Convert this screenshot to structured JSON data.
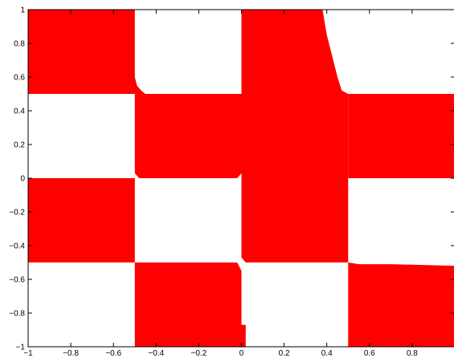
{
  "chart_data": {
    "type": "heatmap",
    "xlim": [
      -1,
      1
    ],
    "ylim": [
      -1,
      1
    ],
    "grid": false,
    "fill_color": "#ff0000",
    "background_color": "#ffffff",
    "x_ticks": [
      {
        "value": -1,
        "label": "−1"
      },
      {
        "value": -0.8,
        "label": "−0.8"
      },
      {
        "value": -0.6,
        "label": "−0.6"
      },
      {
        "value": -0.4,
        "label": "−0.4"
      },
      {
        "value": -0.2,
        "label": "−0.2"
      },
      {
        "value": 0,
        "label": "0"
      },
      {
        "value": 0.2,
        "label": "0.2"
      },
      {
        "value": 0.4,
        "label": "0.4"
      },
      {
        "value": 0.6,
        "label": "0.6"
      },
      {
        "value": 0.8,
        "label": "0.8"
      }
    ],
    "y_ticks": [
      {
        "value": 1,
        "label": "1"
      },
      {
        "value": 0.8,
        "label": "0.8"
      },
      {
        "value": 0.6,
        "label": "0.6"
      },
      {
        "value": 0.4,
        "label": "0.4"
      },
      {
        "value": 0.2,
        "label": "0.2"
      },
      {
        "value": 0,
        "label": "0"
      },
      {
        "value": -0.2,
        "label": "−0.2"
      },
      {
        "value": -0.4,
        "label": "−0.4"
      },
      {
        "value": -0.6,
        "label": "−0.6"
      },
      {
        "value": -0.8,
        "label": "−0.8"
      },
      {
        "value": -1,
        "label": "−1"
      }
    ],
    "filled_regions": [
      [
        [
          -1,
          1
        ],
        [
          -0.5,
          1
        ],
        [
          -0.5,
          0.6
        ],
        [
          -0.49,
          0.55
        ],
        [
          -0.47,
          0.52
        ],
        [
          -0.45,
          0.5
        ],
        [
          -1,
          0.5
        ]
      ],
      [
        [
          0,
          1
        ],
        [
          0.38,
          1
        ],
        [
          0.4,
          0.85
        ],
        [
          0.43,
          0.7
        ],
        [
          0.45,
          0.6
        ],
        [
          0.47,
          0.52
        ],
        [
          0.5,
          0.5
        ],
        [
          0.5,
          0
        ],
        [
          0,
          0
        ]
      ],
      [
        [
          -0.5,
          0.5
        ],
        [
          0,
          0.5
        ],
        [
          0,
          0.03
        ],
        [
          -0.02,
          0
        ],
        [
          -0.48,
          0
        ],
        [
          -0.5,
          0.03
        ]
      ],
      [
        [
          0.5,
          0.5
        ],
        [
          1,
          0.5
        ],
        [
          1,
          0
        ],
        [
          0.5,
          0
        ]
      ],
      [
        [
          -1,
          0
        ],
        [
          -0.5,
          0
        ],
        [
          -0.5,
          -0.5
        ],
        [
          -1,
          -0.5
        ]
      ],
      [
        [
          0,
          0
        ],
        [
          0.5,
          0
        ],
        [
          0.5,
          -0.5
        ],
        [
          0.02,
          -0.5
        ],
        [
          0,
          -0.47
        ]
      ],
      [
        [
          -0.5,
          -0.5
        ],
        [
          -0.02,
          -0.5
        ],
        [
          0,
          -0.55
        ],
        [
          0,
          -1
        ],
        [
          -0.5,
          -1
        ]
      ],
      [
        [
          0.5,
          -0.5
        ],
        [
          0.55,
          -0.51
        ],
        [
          0.7,
          -0.51
        ],
        [
          1,
          -0.52
        ],
        [
          1,
          -1
        ],
        [
          0.5,
          -1
        ]
      ],
      [
        [
          0,
          -0.87
        ],
        [
          0.02,
          -0.87
        ],
        [
          0.02,
          -1
        ],
        [
          0,
          -1
        ]
      ]
    ]
  }
}
